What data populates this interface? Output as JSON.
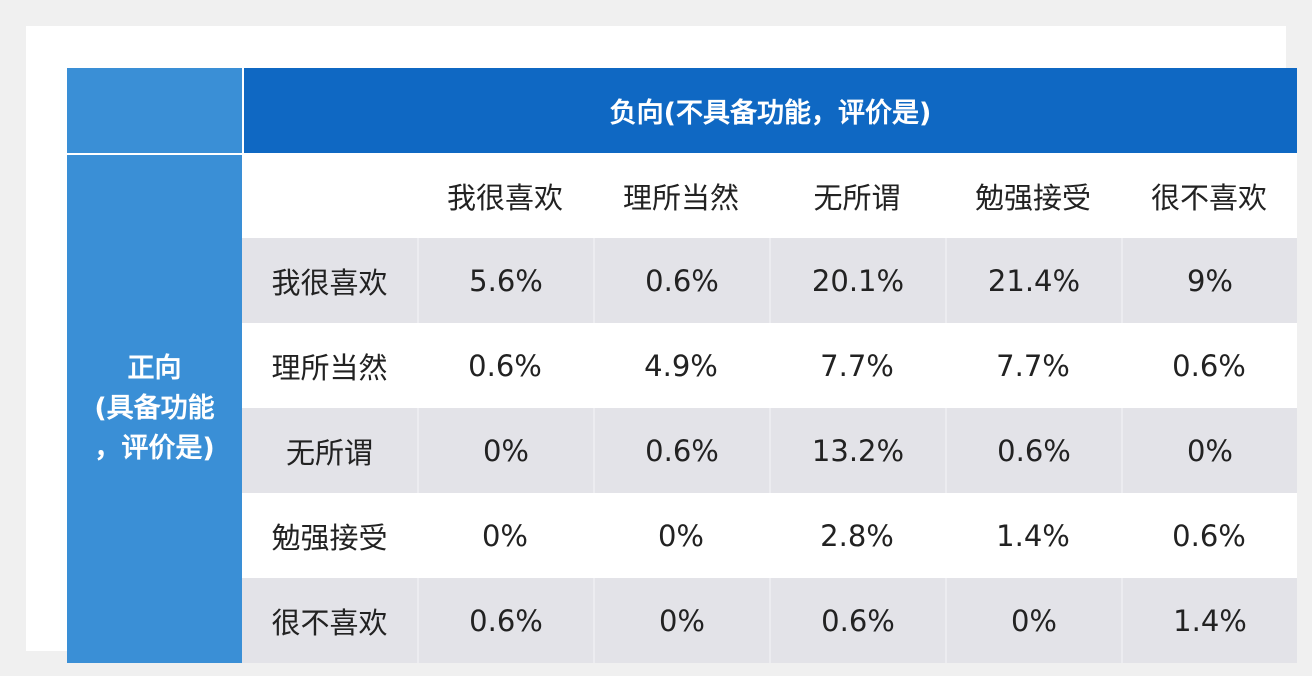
{
  "header": {
    "negative_title": "负向(不具备功能，评价是)",
    "positive_title": "正向\n(具备功能\n，评价是)"
  },
  "columns": [
    "我很喜欢",
    "理所当然",
    "无所谓",
    "勉强接受",
    "很不喜欢"
  ],
  "rows": [
    {
      "label": "我很喜欢",
      "values": [
        "5.6%",
        "0.6%",
        "20.1%",
        "21.4%",
        "9%"
      ]
    },
    {
      "label": "理所当然",
      "values": [
        "0.6%",
        "4.9%",
        "7.7%",
        "7.7%",
        "0.6%"
      ]
    },
    {
      "label": "无所谓",
      "values": [
        "0%",
        "0.6%",
        "13.2%",
        "0.6%",
        "0%"
      ]
    },
    {
      "label": "勉强接受",
      "values": [
        "0%",
        "0%",
        "2.8%",
        "1.4%",
        "0.6%"
      ]
    },
    {
      "label": "很不喜欢",
      "values": [
        "0.6%",
        "0%",
        "0.6%",
        "0%",
        "1.4%"
      ]
    }
  ],
  "colors": {
    "top_header": "#0f68c3",
    "side_header": "#3a8fd6",
    "shaded_row": "#e3e3e8"
  }
}
